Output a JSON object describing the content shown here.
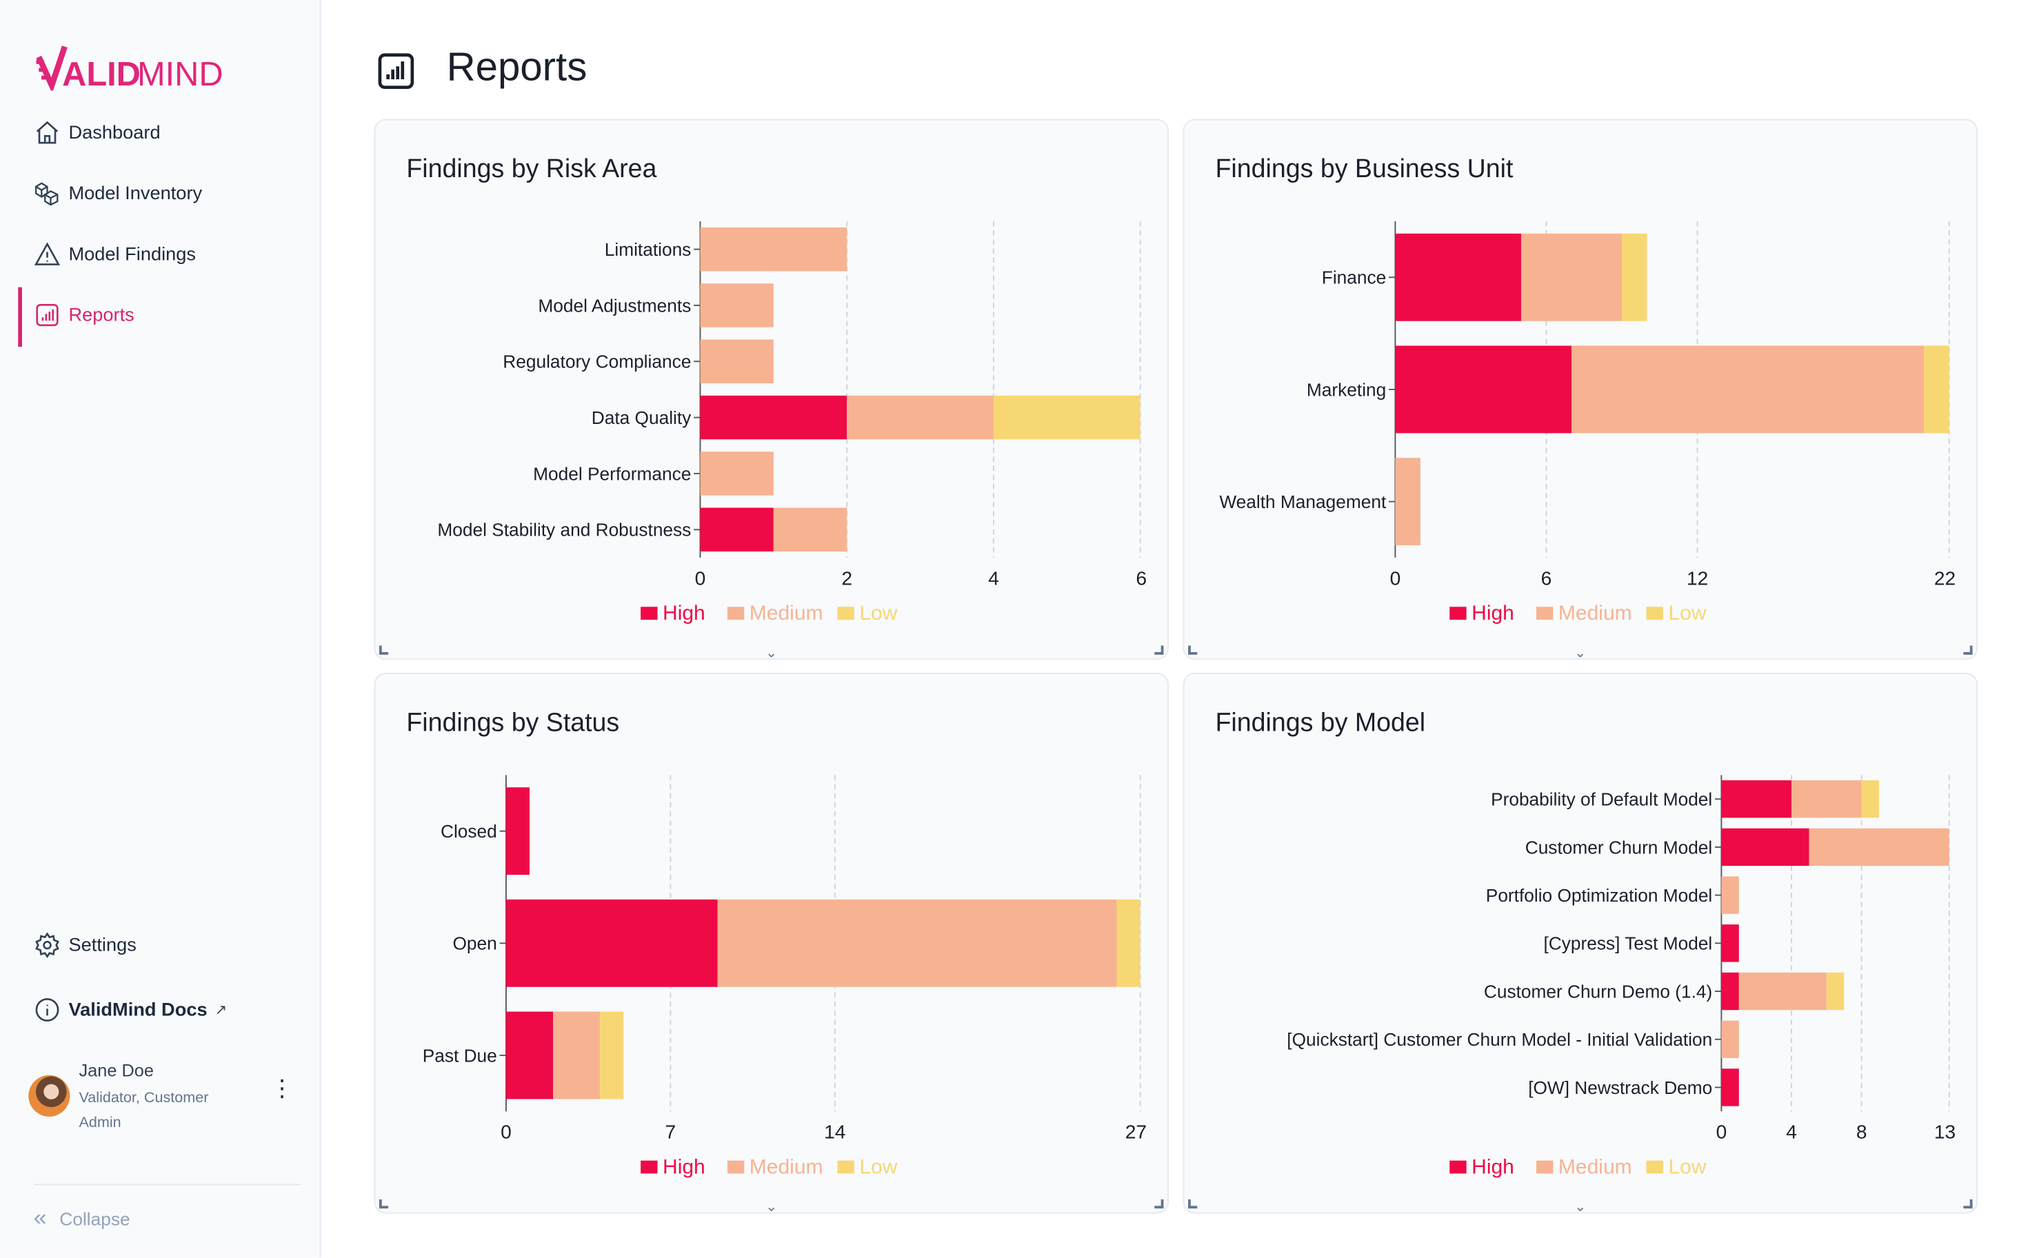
{
  "brand": {
    "logo_text": "VALIDMIND",
    "accent": "#d6246e"
  },
  "sidebar": {
    "items": [
      {
        "label": "Dashboard",
        "icon": "home-icon"
      },
      {
        "label": "Model Inventory",
        "icon": "cubes-icon"
      },
      {
        "label": "Model Findings",
        "icon": "warning-icon"
      },
      {
        "label": "Reports",
        "icon": "bar-chart-icon",
        "active": true
      }
    ],
    "settings_label": "Settings",
    "docs_label": "ValidMind Docs",
    "user": {
      "name": "Jane Doe",
      "role": "Validator, Customer Admin"
    },
    "collapse_label": "Collapse"
  },
  "header": {
    "title": "Reports"
  },
  "colors": {
    "High": "#ee0a46",
    "Medium": "#f7b391",
    "Low": "#f7d774"
  },
  "chart_data": [
    {
      "type": "bar",
      "orientation": "horizontal",
      "stacked": true,
      "title": "Findings by Risk Area",
      "categories": [
        "Limitations",
        "Model Adjustments",
        "Regulatory Compliance",
        "Data Quality",
        "Model Performance",
        "Model Stability and Robustness"
      ],
      "series": [
        {
          "name": "High",
          "values": [
            0,
            0,
            0,
            2,
            0,
            1
          ]
        },
        {
          "name": "Medium",
          "values": [
            2,
            1,
            1,
            2,
            1,
            1
          ]
        },
        {
          "name": "Low",
          "values": [
            0,
            0,
            0,
            2,
            0,
            0
          ]
        }
      ],
      "xticks": [
        0,
        2,
        4,
        6
      ],
      "xlim": [
        0,
        6
      ],
      "grid": true,
      "legend": "bottom"
    },
    {
      "type": "bar",
      "orientation": "horizontal",
      "stacked": true,
      "title": "Findings by Business Unit",
      "categories": [
        "Finance",
        "Marketing",
        "Wealth Management"
      ],
      "series": [
        {
          "name": "High",
          "values": [
            5,
            7,
            0
          ]
        },
        {
          "name": "Medium",
          "values": [
            4,
            14,
            1
          ]
        },
        {
          "name": "Low",
          "values": [
            1,
            1,
            0
          ]
        }
      ],
      "xticks": [
        0,
        6,
        12,
        22
      ],
      "xlim": [
        0,
        22
      ],
      "grid": true,
      "legend": "bottom"
    },
    {
      "type": "bar",
      "orientation": "horizontal",
      "stacked": true,
      "title": "Findings by Status",
      "categories": [
        "Closed",
        "Open",
        "Past Due"
      ],
      "series": [
        {
          "name": "High",
          "values": [
            1,
            9,
            2
          ]
        },
        {
          "name": "Medium",
          "values": [
            0,
            17,
            2
          ]
        },
        {
          "name": "Low",
          "values": [
            0,
            1,
            1
          ]
        }
      ],
      "xticks": [
        0,
        7,
        14,
        27
      ],
      "xlim": [
        0,
        27
      ],
      "grid": true,
      "legend": "bottom"
    },
    {
      "type": "bar",
      "orientation": "horizontal",
      "stacked": true,
      "title": "Findings by Model",
      "categories": [
        "Probability of Default Model",
        "Customer Churn Model",
        "Portfolio Optimization Model",
        "[Cypress] Test Model",
        "Customer Churn Demo (1.4)",
        "[Quickstart] Customer Churn Model - Initial Validation",
        "[OW] Newstrack Demo"
      ],
      "series": [
        {
          "name": "High",
          "values": [
            4,
            5,
            0,
            1,
            1,
            0,
            1
          ]
        },
        {
          "name": "Medium",
          "values": [
            4,
            8,
            1,
            0,
            5,
            1,
            0
          ]
        },
        {
          "name": "Low",
          "values": [
            1,
            0,
            0,
            0,
            1,
            0,
            0
          ]
        }
      ],
      "xticks": [
        0,
        4,
        8,
        13
      ],
      "xlim": [
        0,
        13
      ],
      "grid": true,
      "legend": "bottom"
    }
  ]
}
